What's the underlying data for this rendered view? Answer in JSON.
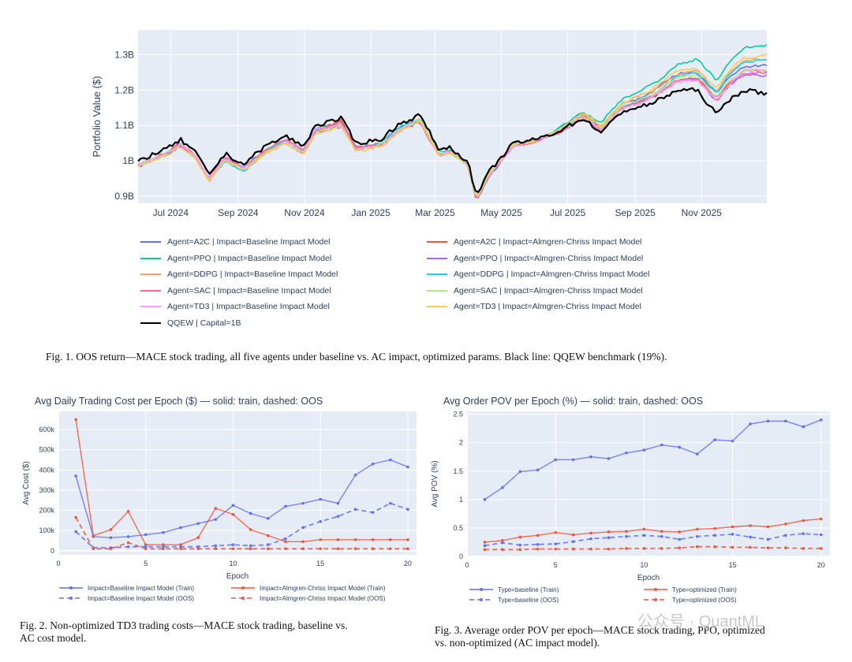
{
  "figure1": {
    "caption": "Fig. 1.  OOS return—MACE stock trading, all five agents under baseline vs. AC impact, optimized params. Black line: QQEW benchmark (19%).",
    "chart_data": {
      "type": "line",
      "ylabel": "Portfolio Value ($)",
      "y_ticks": [
        "0.9B",
        "1B",
        "1.1B",
        "1.2B",
        "1.3B"
      ],
      "x_ticks": [
        "Jul 2024",
        "Sep 2024",
        "Nov 2024",
        "Jan 2025",
        "Mar 2025",
        "May 2025",
        "Jul 2025",
        "Sep 2025",
        "Nov 2025"
      ],
      "x_range": [
        "2024-06-01",
        "2025-12-31"
      ],
      "ylim": [
        0.88,
        1.37
      ],
      "grid": true,
      "legend_position": "bottom",
      "series": [
        {
          "name": "Agent=A2C | Impact=Baseline Impact Model",
          "color": "#636efa",
          "final": 1.28
        },
        {
          "name": "Agent=A2C | Impact=Almgren-Chriss Impact Model",
          "color": "#ef553b",
          "final": 1.27
        },
        {
          "name": "Agent=PPO | Impact=Baseline Impact Model",
          "color": "#00cc96",
          "final": 1.34
        },
        {
          "name": "Agent=PPO | Impact=Almgren-Chriss Impact Model",
          "color": "#ab63fa",
          "final": 1.25
        },
        {
          "name": "Agent=DDPG | Impact=Baseline Impact Model",
          "color": "#ffa15a",
          "final": 1.3
        },
        {
          "name": "Agent=DDPG | Impact=Almgren-Chriss Impact Model",
          "color": "#19d3f3",
          "final": 1.29
        },
        {
          "name": "Agent=SAC | Impact=Baseline Impact Model",
          "color": "#ff6692",
          "final": 1.26
        },
        {
          "name": "Agent=SAC | Impact=Almgren-Chriss Impact Model",
          "color": "#b6e880",
          "final": 1.27
        },
        {
          "name": "Agent=TD3 | Impact=Baseline Impact Model",
          "color": "#ff97ff",
          "final": 1.26
        },
        {
          "name": "Agent=TD3 | Impact=Almgren-Chriss Impact Model",
          "color": "#fecb52",
          "final": 1.31
        },
        {
          "name": "QQEW | Capital=1B",
          "color": "#000000",
          "final": 1.19
        }
      ],
      "benchmark_anchors": [
        [
          "2024-06-01",
          1.0
        ],
        [
          "2024-07-01",
          1.04
        ],
        [
          "2024-07-10",
          1.06
        ],
        [
          "2024-07-25",
          1.02
        ],
        [
          "2024-08-05",
          0.96
        ],
        [
          "2024-08-20",
          1.02
        ],
        [
          "2024-09-06",
          0.99
        ],
        [
          "2024-09-25",
          1.04
        ],
        [
          "2024-10-15",
          1.07
        ],
        [
          "2024-10-31",
          1.04
        ],
        [
          "2024-11-11",
          1.1
        ],
        [
          "2024-12-05",
          1.12
        ],
        [
          "2024-12-18",
          1.05
        ],
        [
          "2025-01-10",
          1.06
        ],
        [
          "2025-01-25",
          1.1
        ],
        [
          "2025-02-15",
          1.13
        ],
        [
          "2025-03-05",
          1.03
        ],
        [
          "2025-03-13",
          1.04
        ],
        [
          "2025-03-31",
          1.0
        ],
        [
          "2025-04-08",
          0.9
        ],
        [
          "2025-04-20",
          0.97
        ],
        [
          "2025-05-12",
          1.05
        ],
        [
          "2025-06-01",
          1.06
        ],
        [
          "2025-06-20",
          1.08
        ],
        [
          "2025-07-15",
          1.12
        ],
        [
          "2025-08-01",
          1.08
        ],
        [
          "2025-08-20",
          1.14
        ],
        [
          "2025-09-15",
          1.16
        ],
        [
          "2025-10-10",
          1.2
        ],
        [
          "2025-10-28",
          1.2
        ],
        [
          "2025-11-15",
          1.13
        ],
        [
          "2025-11-25",
          1.17
        ],
        [
          "2025-12-10",
          1.2
        ],
        [
          "2025-12-31",
          1.19
        ]
      ]
    }
  },
  "figure2": {
    "caption_line1": "Fig. 2.  Non-optimized TD3 trading costs—MACE stock trading, baseline vs.",
    "caption_line2": "AC cost model.",
    "chart_data": {
      "type": "line",
      "title": "Avg Daily Trading Cost per Epoch ($) — solid: train, dashed: OOS",
      "xlabel": "Epoch",
      "ylabel": "Avg Cost ($)",
      "xlim": [
        0,
        20.5
      ],
      "ylim": [
        -20000,
        690000
      ],
      "x_ticks": [
        0,
        5,
        10,
        15,
        20
      ],
      "y_ticks": [
        0,
        100000,
        200000,
        300000,
        400000,
        500000,
        600000
      ],
      "y_tick_labels": [
        "0",
        "100k",
        "200k",
        "300k",
        "400k",
        "500k",
        "600k"
      ],
      "x": [
        1,
        2,
        3,
        4,
        5,
        6,
        7,
        8,
        9,
        10,
        11,
        12,
        13,
        14,
        15,
        16,
        17,
        18,
        19,
        20
      ],
      "series": [
        {
          "name": "Impact=Baseline Impact Model (Train)",
          "color": "#636efa",
          "dash": false,
          "values": [
            370000,
            70000,
            65000,
            70000,
            80000,
            90000,
            115000,
            135000,
            155000,
            225000,
            185000,
            160000,
            220000,
            235000,
            255000,
            235000,
            375000,
            430000,
            450000,
            415000
          ]
        },
        {
          "name": "Impact=Almgren-Chriss Impact Model (Train)",
          "color": "#ef553b",
          "dash": false,
          "values": [
            650000,
            75000,
            105000,
            195000,
            30000,
            30000,
            30000,
            65000,
            210000,
            180000,
            105000,
            75000,
            45000,
            45000,
            55000,
            55000,
            55000,
            55000,
            55000,
            55000
          ]
        },
        {
          "name": "Impact=Baseline Impact Model (OOS)",
          "color": "#636efa",
          "dash": true,
          "values": [
            95000,
            15000,
            15000,
            20000,
            20000,
            20000,
            20000,
            20000,
            25000,
            30000,
            25000,
            30000,
            60000,
            115000,
            145000,
            170000,
            205000,
            190000,
            235000,
            205000
          ]
        },
        {
          "name": "Impact=Almgren-Chriss Impact Model (OOS)",
          "color": "#ef553b",
          "dash": true,
          "values": [
            165000,
            10000,
            10000,
            40000,
            10000,
            10000,
            10000,
            10000,
            10000,
            10000,
            10000,
            10000,
            10000,
            10000,
            10000,
            10000,
            10000,
            10000,
            10000,
            10000
          ]
        }
      ]
    }
  },
  "figure3": {
    "caption_line1": "Fig. 3.  Average order POV per epoch—MACE stock trading, PPO, optimized",
    "caption_line2": "vs. non-optimized (AC impact model).",
    "chart_data": {
      "type": "line",
      "title": "Avg Order POV per Epoch (%) — solid: train, dashed: OOS",
      "xlabel": "Epoch",
      "ylabel": "Avg POV (%)",
      "xlim": [
        0,
        20.5
      ],
      "ylim": [
        0,
        2.55
      ],
      "x_ticks": [
        0,
        5,
        10,
        15,
        20
      ],
      "y_ticks": [
        0,
        0.5,
        1,
        1.5,
        2,
        2.5
      ],
      "y_tick_labels": [
        "0",
        "0.5",
        "1",
        "1.5",
        "2",
        "2.5"
      ],
      "x": [
        1,
        2,
        3,
        4,
        5,
        6,
        7,
        8,
        9,
        10,
        11,
        12,
        13,
        14,
        15,
        16,
        17,
        18,
        19,
        20
      ],
      "series": [
        {
          "name": "Type=baseline (Train)",
          "color": "#636efa",
          "dash": false,
          "values": [
            1.0,
            1.21,
            1.49,
            1.52,
            1.7,
            1.7,
            1.75,
            1.72,
            1.82,
            1.87,
            1.96,
            1.92,
            1.8,
            2.05,
            2.03,
            2.33,
            2.38,
            2.38,
            2.28,
            2.4
          ]
        },
        {
          "name": "Type=optimized (Train)",
          "color": "#ef553b",
          "dash": false,
          "values": [
            0.25,
            0.28,
            0.34,
            0.37,
            0.42,
            0.38,
            0.41,
            0.43,
            0.44,
            0.48,
            0.44,
            0.43,
            0.48,
            0.49,
            0.52,
            0.54,
            0.52,
            0.57,
            0.63,
            0.66
          ]
        },
        {
          "name": "Type=baseline (OOS)",
          "color": "#636efa",
          "dash": true,
          "values": [
            0.19,
            0.24,
            0.2,
            0.21,
            0.22,
            0.26,
            0.31,
            0.33,
            0.35,
            0.37,
            0.35,
            0.3,
            0.35,
            0.37,
            0.39,
            0.34,
            0.3,
            0.37,
            0.4,
            0.38
          ]
        },
        {
          "name": "Type=optimized (OOS)",
          "color": "#ef553b",
          "dash": true,
          "values": [
            0.12,
            0.12,
            0.12,
            0.13,
            0.13,
            0.13,
            0.13,
            0.13,
            0.14,
            0.14,
            0.14,
            0.15,
            0.17,
            0.17,
            0.16,
            0.16,
            0.15,
            0.15,
            0.14,
            0.14
          ]
        }
      ]
    }
  },
  "watermark": "公众号 · QuantML"
}
